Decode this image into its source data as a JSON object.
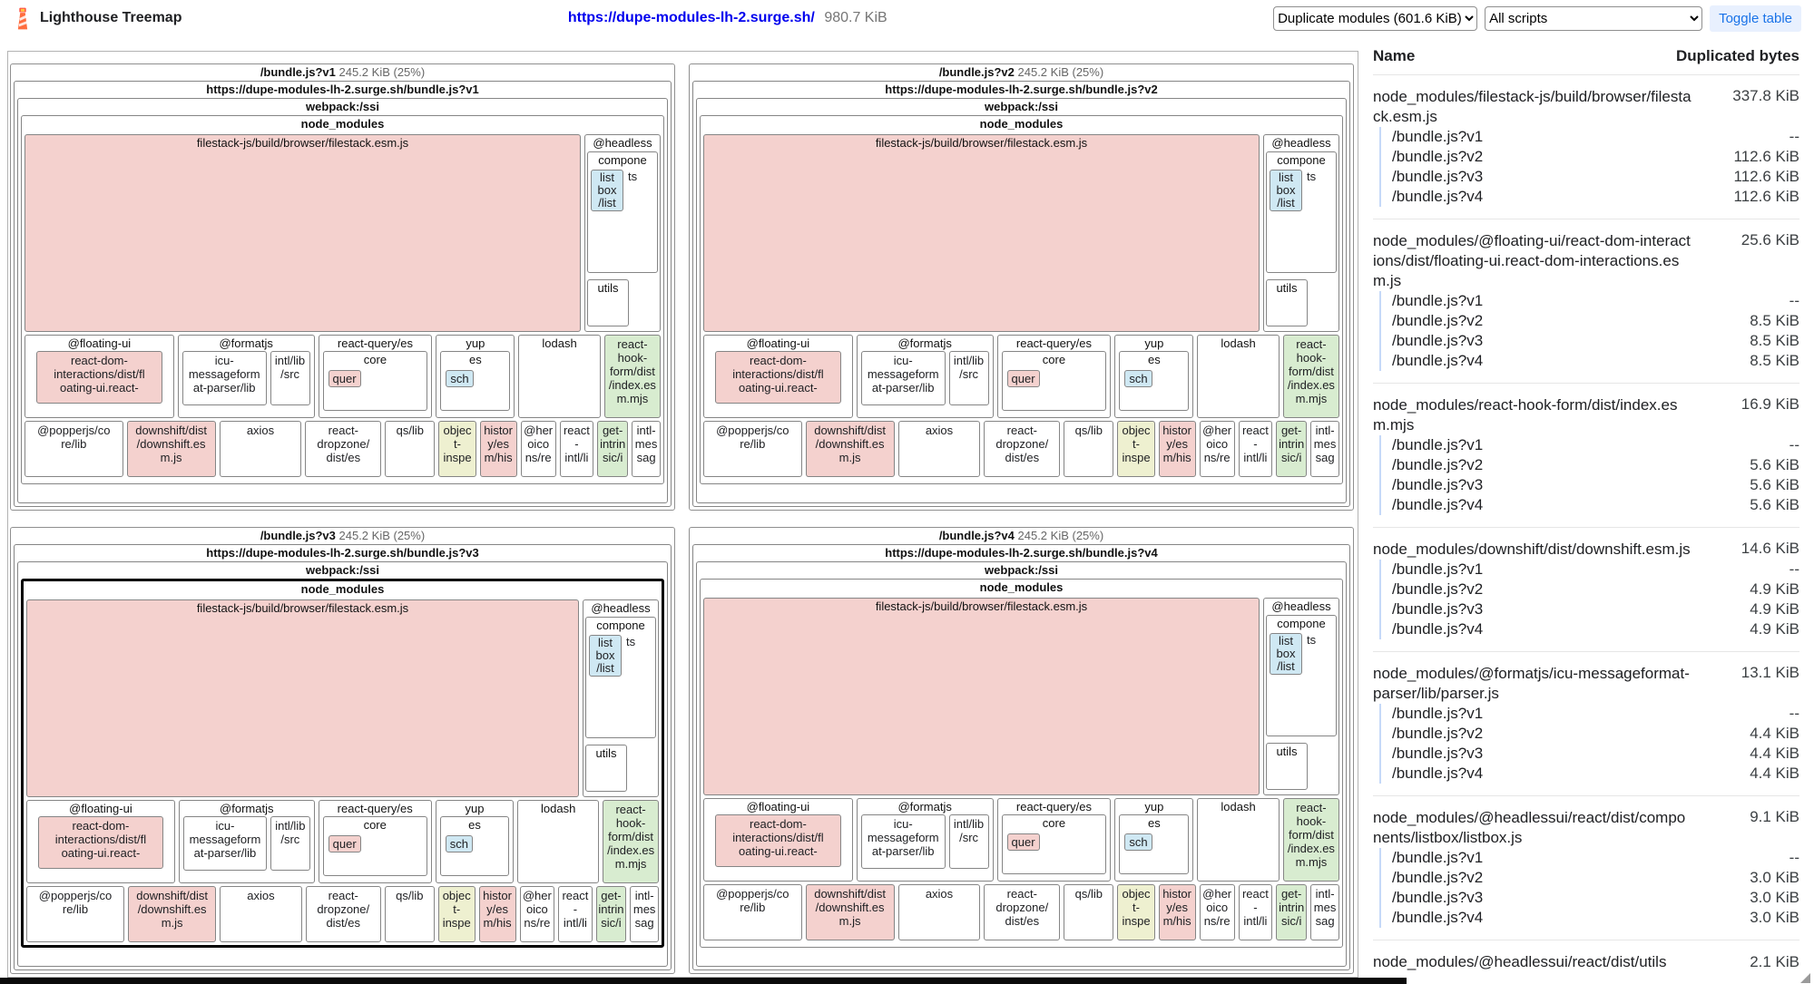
{
  "header": {
    "app_title": "Lighthouse Treemap",
    "url": "https://dupe-modules-lh-2.surge.sh/",
    "total_size": "980.7 KiB",
    "view_select": "Duplicate modules (601.6 KiB)",
    "script_select": "All scripts",
    "toggle_table_label": "Toggle table"
  },
  "colors": {
    "pink": "#f4d1ce",
    "green": "#d8ecd0",
    "blue": "#cfe8f3",
    "khaki": "#eef0d0",
    "link": "#0000ee",
    "toggle_bg": "#e8f0fe",
    "toggle_text": "#1a73e8",
    "guide": "#c6d9f8"
  },
  "panels": [
    {
      "bundle": "/bundle.js?v1",
      "size": "245.2 KiB (25%)",
      "url": "https://dupe-modules-lh-2.surge.sh/bundle.js?v1",
      "highlighted": false
    },
    {
      "bundle": "/bundle.js?v2",
      "size": "245.2 KiB (25%)",
      "url": "https://dupe-modules-lh-2.surge.sh/bundle.js?v2",
      "highlighted": false
    },
    {
      "bundle": "/bundle.js?v3",
      "size": "245.2 KiB (25%)",
      "url": "https://dupe-modules-lh-2.surge.sh/bundle.js?v3",
      "highlighted": true
    },
    {
      "bundle": "/bundle.js?v4",
      "size": "245.2 KiB (25%)",
      "url": "https://dupe-modules-lh-2.surge.sh/bundle.js?v4",
      "highlighted": false
    }
  ],
  "treemap": {
    "webpack_label": "webpack:/ssi",
    "node_modules_label": "node_modules",
    "filestack_label": "filestack-js/build/browser/filestack.esm.js",
    "headless": {
      "label": "@headless",
      "components_line": "compone",
      "components_side": "ts",
      "listbox": "list\nbox\n/list",
      "utils": "utils"
    },
    "mid_row": [
      {
        "label": "@floating-ui",
        "flex": 230,
        "inner": [
          {
            "text": "react-dom-\ninteractions/dist/fl\noating-ui.react-",
            "color": "pink",
            "flex": 1,
            "h": 58,
            "mx": 8
          }
        ]
      },
      {
        "label": "@formatjs",
        "flex": 210,
        "inner": [
          {
            "text": "icu-\nmessageform\nat-parser/lib",
            "color": "white",
            "flex": 13,
            "h": 60
          },
          {
            "text": "intl/lib\n/src",
            "color": "white",
            "flex": 6,
            "h": 60
          }
        ]
      },
      {
        "label": "react-query/es",
        "flex": 175,
        "inner": [
          {
            "label": "core",
            "badge": {
              "text": "quer",
              "color": "pink"
            },
            "flex": 1,
            "h": 66
          }
        ]
      },
      {
        "label": "yup",
        "flex": 120,
        "inner": [
          {
            "label": "es",
            "badge": {
              "text": "sch",
              "color": "blue"
            },
            "flex": 1,
            "h": 66
          }
        ]
      },
      {
        "label": "lodash",
        "flex": 125,
        "inner": []
      },
      {
        "leaf": true,
        "text": "react-\nhook-\nform/dist\n/index.es\nm.mjs",
        "color": "green",
        "flex": 85
      }
    ],
    "bottom_row": [
      {
        "text": "@popperjs/co\nre/lib",
        "color": "white",
        "flex": 150
      },
      {
        "text": "downshift/dist\n/downshift.es\nm.js",
        "color": "pink",
        "flex": 135
      },
      {
        "text": "axios",
        "color": "white",
        "flex": 125
      },
      {
        "text": "react-\ndropzone/\ndist/es",
        "color": "white",
        "flex": 115
      },
      {
        "text": "qs/lib",
        "color": "white",
        "flex": 75
      },
      {
        "text": "objec\nt-\ninspe",
        "color": "khaki",
        "flex": 55
      },
      {
        "text": "histor\ny/es\nm/his",
        "color": "pink",
        "flex": 55
      },
      {
        "text": "@her\noico\nns/re",
        "color": "white",
        "flex": 52
      },
      {
        "text": "react\n-\nintl/li",
        "color": "white",
        "flex": 50
      },
      {
        "text": "get-\nintrin\nsic/i",
        "color": "green",
        "flex": 45
      },
      {
        "text": "intl-\nmes\nsag",
        "color": "white",
        "flex": 42
      }
    ]
  },
  "table": {
    "columns": [
      "Name",
      "Duplicated bytes"
    ],
    "groups": [
      {
        "name": "node_modules/filestack-js/build/browser/filestack.esm.js",
        "total": "337.8 KiB",
        "rows": [
          [
            "/bundle.js?v1",
            "--"
          ],
          [
            "/bundle.js?v2",
            "112.6 KiB"
          ],
          [
            "/bundle.js?v3",
            "112.6 KiB"
          ],
          [
            "/bundle.js?v4",
            "112.6 KiB"
          ]
        ]
      },
      {
        "name": "node_modules/@floating-ui/react-dom-interactions/dist/floating-ui.react-dom-interactions.esm.js",
        "total": "25.6 KiB",
        "rows": [
          [
            "/bundle.js?v1",
            "--"
          ],
          [
            "/bundle.js?v2",
            "8.5 KiB"
          ],
          [
            "/bundle.js?v3",
            "8.5 KiB"
          ],
          [
            "/bundle.js?v4",
            "8.5 KiB"
          ]
        ]
      },
      {
        "name": "node_modules/react-hook-form/dist/index.esm.mjs",
        "total": "16.9 KiB",
        "rows": [
          [
            "/bundle.js?v1",
            "--"
          ],
          [
            "/bundle.js?v2",
            "5.6 KiB"
          ],
          [
            "/bundle.js?v3",
            "5.6 KiB"
          ],
          [
            "/bundle.js?v4",
            "5.6 KiB"
          ]
        ]
      },
      {
        "name": "node_modules/downshift/dist/downshift.esm.js",
        "total": "14.6 KiB",
        "rows": [
          [
            "/bundle.js?v1",
            "--"
          ],
          [
            "/bundle.js?v2",
            "4.9 KiB"
          ],
          [
            "/bundle.js?v3",
            "4.9 KiB"
          ],
          [
            "/bundle.js?v4",
            "4.9 KiB"
          ]
        ]
      },
      {
        "name": "node_modules/@formatjs/icu-messageformat-parser/lib/parser.js",
        "total": "13.1 KiB",
        "rows": [
          [
            "/bundle.js?v1",
            "--"
          ],
          [
            "/bundle.js?v2",
            "4.4 KiB"
          ],
          [
            "/bundle.js?v3",
            "4.4 KiB"
          ],
          [
            "/bundle.js?v4",
            "4.4 KiB"
          ]
        ]
      },
      {
        "name": "node_modules/@headlessui/react/dist/components/listbox/listbox.js",
        "total": "9.1 KiB",
        "rows": [
          [
            "/bundle.js?v1",
            "--"
          ],
          [
            "/bundle.js?v2",
            "3.0 KiB"
          ],
          [
            "/bundle.js?v3",
            "3.0 KiB"
          ],
          [
            "/bundle.js?v4",
            "3.0 KiB"
          ]
        ]
      }
    ],
    "partial_row": {
      "name": "node_modules/@headlessui/react/dist/utils",
      "total": "2.1 KiB"
    }
  }
}
